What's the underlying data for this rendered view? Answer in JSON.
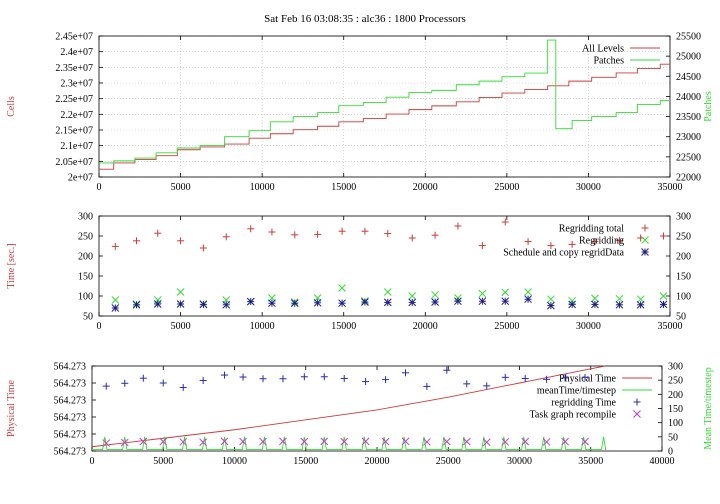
{
  "title": "Sat Feb 16 03:08:35 : alc36 : 1800 Processors",
  "colors": {
    "red": "#cc3b3b",
    "green": "#31dd31",
    "blue": "#2a2ab8",
    "magenta": "#c63cc6",
    "navy": "#1c1c8c",
    "axis": "#000000",
    "grid": "#bbbbbb"
  },
  "chart_data": [
    {
      "type": "line",
      "ylabel_left": "Cells",
      "ylabel_right": "Patches",
      "xlim": [
        0,
        35000
      ],
      "ylim_left": [
        20000000,
        24500000
      ],
      "ylim_right": [
        22000,
        25500
      ],
      "x_ticks": [
        "0",
        "5000",
        "10000",
        "15000",
        "20000",
        "25000",
        "30000",
        "35000"
      ],
      "y_ticks_left": [
        "2e+07",
        "2.05e+07",
        "2.1e+07",
        "2.15e+07",
        "2.2e+07",
        "2.25e+07",
        "2.3e+07",
        "2.35e+07",
        "2.4e+07",
        "2.45e+07"
      ],
      "y_ticks_right": [
        "22000",
        "22500",
        "23000",
        "23500",
        "24000",
        "24500",
        "25000",
        "25500"
      ],
      "grid": true,
      "legend": "top-right",
      "series": [
        {
          "name": "All Levels",
          "axis": "left",
          "step": true,
          "x": [
            0,
            900,
            2200,
            3500,
            4800,
            6200,
            7700,
            9200,
            10500,
            11900,
            13400,
            14700,
            16200,
            17600,
            19000,
            20400,
            21900,
            23300,
            24700,
            26100,
            27500,
            28800,
            30200,
            31700,
            33000,
            34400,
            35000
          ],
          "y": [
            20250000,
            20450000,
            20560000,
            20680000,
            20870000,
            20960000,
            21050000,
            21240000,
            21380000,
            21510000,
            21620000,
            21760000,
            21870000,
            22010000,
            22150000,
            22270000,
            22400000,
            22540000,
            22680000,
            22790000,
            22910000,
            23060000,
            23180000,
            23320000,
            23460000,
            23600000,
            23600000
          ]
        },
        {
          "name": "Patches",
          "axis": "right",
          "step": true,
          "x": [
            0,
            900,
            2200,
            3500,
            4800,
            6200,
            7700,
            9200,
            10500,
            11900,
            13400,
            14700,
            16200,
            17600,
            19000,
            20400,
            21900,
            23300,
            24700,
            26100,
            27500,
            28000,
            29000,
            30200,
            31700,
            33000,
            34400,
            35000
          ],
          "y": [
            22350,
            22400,
            22470,
            22600,
            22720,
            22780,
            23000,
            23150,
            23370,
            23500,
            23600,
            23770,
            23850,
            23980,
            24100,
            24150,
            24290,
            24380,
            24490,
            24580,
            25400,
            23200,
            23400,
            23500,
            23600,
            23800,
            23900,
            23900
          ]
        }
      ]
    },
    {
      "type": "scatter",
      "ylabel_left": "Time [sec.]",
      "xlim": [
        0,
        35000
      ],
      "ylim_left": [
        50,
        300
      ],
      "ylim_right": [
        50,
        300
      ],
      "x_ticks": [
        "0",
        "5000",
        "10000",
        "15000",
        "20000",
        "25000",
        "30000",
        "35000"
      ],
      "y_ticks_left": [
        "50",
        "100",
        "150",
        "200",
        "250",
        "300"
      ],
      "y_ticks_right": [
        "50",
        "100",
        "150",
        "200",
        "250",
        "300"
      ],
      "legend": "top-right",
      "series": [
        {
          "name": "Regridding total",
          "marker": "plus",
          "x": [
            1000,
            2300,
            3600,
            5000,
            6400,
            7800,
            9300,
            10600,
            12000,
            13400,
            14900,
            16300,
            17700,
            19200,
            20600,
            22000,
            23500,
            24900,
            26300,
            27700,
            29000,
            30400,
            31900,
            33200,
            34600
          ],
          "y": [
            224,
            238,
            257,
            238,
            220,
            248,
            268,
            260,
            253,
            254,
            262,
            262,
            256,
            245,
            252,
            275,
            226,
            285,
            236,
            226,
            229,
            236,
            239,
            245,
            250
          ]
        },
        {
          "name": "Regridding",
          "marker": "cross",
          "x": [
            1000,
            2300,
            3600,
            5000,
            6400,
            7800,
            9300,
            10600,
            12000,
            13400,
            14900,
            16300,
            17700,
            19200,
            20600,
            22000,
            23500,
            24900,
            26300,
            27700,
            29000,
            30400,
            31900,
            33200,
            34600
          ],
          "y": [
            90,
            80,
            90,
            110,
            80,
            90,
            86,
            95,
            85,
            95,
            120,
            88,
            110,
            100,
            103,
            95,
            106,
            109,
            110,
            92,
            88,
            94,
            93,
            92,
            100
          ]
        },
        {
          "name": "Schedule and copy regridData",
          "marker": "star",
          "x": [
            1000,
            2300,
            3600,
            5000,
            6400,
            7800,
            9300,
            10600,
            12000,
            13400,
            14900,
            16300,
            17700,
            19200,
            20600,
            22000,
            23500,
            24900,
            26300,
            27700,
            29000,
            30400,
            31900,
            33200,
            34600
          ],
          "y": [
            70,
            78,
            80,
            80,
            79,
            78,
            86,
            82,
            82,
            83,
            82,
            85,
            84,
            84,
            85,
            87,
            87,
            87,
            92,
            76,
            79,
            79,
            78,
            78,
            79
          ]
        }
      ]
    },
    {
      "type": "line",
      "ylabel_left": "Physical Time",
      "ylabel_right": "Mean Time/timestep",
      "xlim": [
        0,
        40000
      ],
      "ylim_left": [
        0,
        6
      ],
      "ylim_right": [
        0,
        300
      ],
      "x_ticks": [
        "0",
        "5000",
        "10000",
        "15000",
        "20000",
        "25000",
        "30000",
        "35000",
        "40000"
      ],
      "y_ticks_left": [
        "564.273",
        "564.273",
        "564.273",
        "564.273",
        "564.273",
        "564.273"
      ],
      "y_ticks_right": [
        "0",
        "50",
        "100",
        "150",
        "200",
        "250",
        "300"
      ],
      "legend": "top-right",
      "series": [
        {
          "name": "Physical Time",
          "axis": "left",
          "x": [
            0,
            5000,
            10000,
            15000,
            20000,
            25000,
            30000,
            35000,
            36000
          ],
          "y": [
            0.3,
            0.9,
            1.5,
            2.2,
            2.9,
            3.8,
            4.8,
            5.8,
            6.0
          ]
        },
        {
          "name": "meanTime/timestep",
          "axis": "right",
          "spike_period": 1400,
          "spike_start": 900,
          "spike_end": 36000,
          "baseline": 5,
          "spike_height": 50
        },
        {
          "name": "regridding Time",
          "axis": "right",
          "marker": "plus",
          "x": [
            1000,
            2300,
            3600,
            5000,
            6400,
            7800,
            9300,
            10600,
            12000,
            13400,
            14900,
            16300,
            17700,
            19200,
            20600,
            22000,
            23500,
            24900,
            26300,
            27700,
            29000,
            30400,
            31900,
            33200,
            34600
          ],
          "y": [
            229,
            239,
            257,
            240,
            224,
            249,
            268,
            261,
            255,
            255,
            262,
            262,
            256,
            245,
            252,
            276,
            228,
            285,
            237,
            230,
            260,
            256,
            253,
            258,
            260
          ]
        },
        {
          "name": "Task graph recompile",
          "axis": "right",
          "marker": "cross",
          "x": [
            1000,
            2300,
            3600,
            5000,
            6400,
            7800,
            9300,
            10600,
            12000,
            13400,
            14900,
            16300,
            17700,
            19200,
            20600,
            22000,
            23500,
            24900,
            26300,
            27700,
            29000,
            30400,
            31900,
            33200,
            34600
          ],
          "y": [
            28,
            30,
            33,
            33,
            32,
            31,
            34,
            33,
            33,
            34,
            33,
            34,
            33,
            34,
            33,
            34,
            32,
            33,
            33,
            31,
            32,
            33,
            32,
            33,
            33
          ]
        }
      ]
    }
  ]
}
